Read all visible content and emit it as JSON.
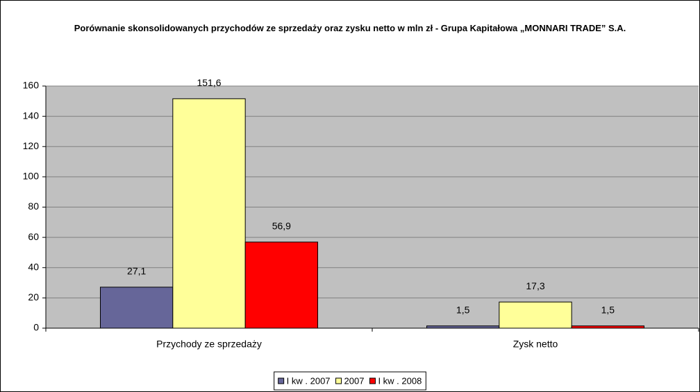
{
  "chart_data": {
    "type": "bar",
    "title": "Porównanie skonsolidowanych przychodów ze sprzedaży oraz zysku netto w mln zł - Grupa Kapitałowa „MONNARI TRADE” S.A.",
    "categories": [
      "Przychody ze sprzedaży",
      "Zysk netto"
    ],
    "series": [
      {
        "name": "I kw . 2007",
        "color": "#666699",
        "values": [
          27.1,
          1.5
        ],
        "value_labels": [
          "27,1",
          "1,5"
        ]
      },
      {
        "name": "2007",
        "color": "#ffff99",
        "values": [
          151.6,
          17.3
        ],
        "value_labels": [
          "151,6",
          "17,3"
        ]
      },
      {
        "name": "I kw . 2008",
        "color": "#ff0000",
        "values": [
          56.9,
          1.5
        ],
        "value_labels": [
          "56,9",
          "1,5"
        ]
      }
    ],
    "ylim": [
      0,
      160
    ],
    "yticks": [
      0,
      20,
      40,
      60,
      80,
      100,
      120,
      140,
      160
    ],
    "grid": true,
    "plot_background": "#c0c0c0",
    "legend": "bottom"
  }
}
